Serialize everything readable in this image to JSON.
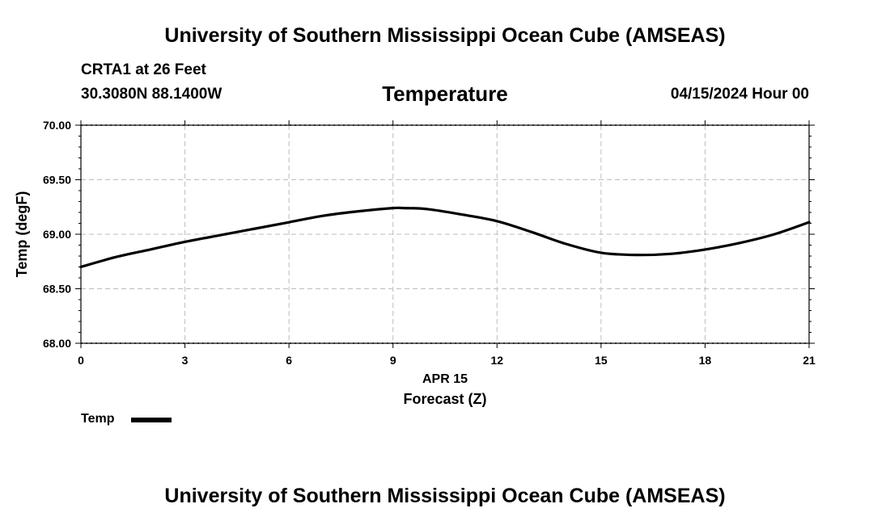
{
  "header": {
    "title": "University of Southern Mississippi Ocean Cube (AMSEAS)",
    "station_line": "CRTA1 at 26 Feet",
    "coords_line": "30.3080N  88.1400W",
    "variable_title": "Temperature",
    "datetime": "04/15/2024 Hour 00"
  },
  "footer": {
    "title": "University of Southern Mississippi Ocean Cube (AMSEAS)"
  },
  "legend": {
    "label": "Temp",
    "color": "#000000"
  },
  "chart_data": {
    "type": "line",
    "title": "Temperature",
    "xlabel": "Forecast (Z)",
    "xlabel_date": "APR 15",
    "ylabel": "Temp (degF)",
    "xlim": [
      0,
      21
    ],
    "ylim": [
      68.0,
      70.0
    ],
    "x_ticks": [
      0,
      3,
      6,
      9,
      12,
      15,
      18,
      21
    ],
    "y_ticks": [
      68.0,
      68.5,
      69.0,
      69.5,
      70.0
    ],
    "y_tick_labels": [
      "68.00",
      "68.50",
      "69.00",
      "69.50",
      "70.00"
    ],
    "grid": true,
    "series": [
      {
        "name": "Temp",
        "color": "#000000",
        "x": [
          0,
          1,
          2,
          3,
          4,
          5,
          6,
          7,
          8,
          9,
          9.3,
          10,
          11,
          12,
          13,
          14,
          15,
          16,
          17,
          18,
          19,
          20,
          21
        ],
        "y": [
          68.7,
          68.79,
          68.86,
          68.93,
          68.99,
          69.05,
          69.11,
          69.17,
          69.21,
          69.24,
          69.24,
          69.23,
          69.18,
          69.12,
          69.02,
          68.91,
          68.83,
          68.81,
          68.82,
          68.86,
          68.92,
          69.0,
          69.11
        ]
      }
    ]
  }
}
